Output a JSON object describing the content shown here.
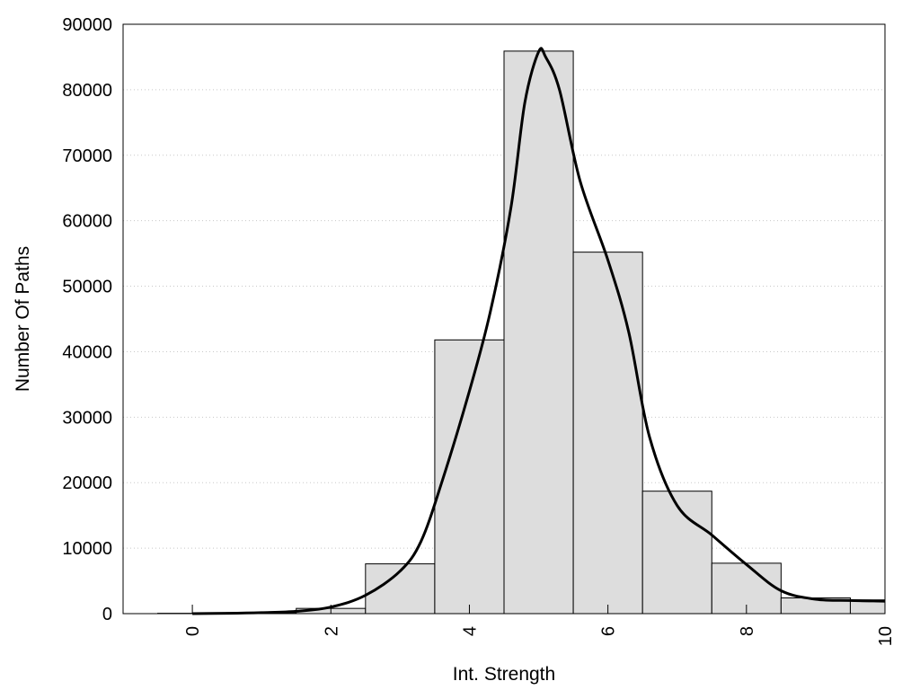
{
  "chart_data": {
    "type": "bar",
    "xlabel": "Int. Strength",
    "ylabel": "Number Of Paths",
    "xlim": [
      -1,
      10
    ],
    "ylim": [
      0,
      90000
    ],
    "x_ticks": [
      0,
      2,
      4,
      6,
      8,
      10
    ],
    "y_ticks": [
      0,
      10000,
      20000,
      30000,
      40000,
      50000,
      60000,
      70000,
      80000,
      90000
    ],
    "grid": "horizontal-dotted",
    "legend": "none",
    "bar_color": "#dddddd",
    "curve_color": "#000000",
    "bins": [
      {
        "x": 0,
        "value": 50
      },
      {
        "x": 1,
        "value": 150
      },
      {
        "x": 2,
        "value": 800
      },
      {
        "x": 3,
        "value": 7600
      },
      {
        "x": 4,
        "value": 41800
      },
      {
        "x": 5,
        "value": 85900
      },
      {
        "x": 6,
        "value": 55200
      },
      {
        "x": 7,
        "value": 18700
      },
      {
        "x": 8,
        "value": 7700
      },
      {
        "x": 9,
        "value": 2400
      },
      {
        "x": 10,
        "value": 2100
      }
    ],
    "curve": [
      [
        0,
        0
      ],
      [
        0.5,
        50
      ],
      [
        1,
        150
      ],
      [
        1.5,
        350
      ],
      [
        2,
        1000
      ],
      [
        2.5,
        2800
      ],
      [
        3,
        6500
      ],
      [
        3.3,
        11000
      ],
      [
        3.6,
        20000
      ],
      [
        4,
        34000
      ],
      [
        4.3,
        46000
      ],
      [
        4.6,
        62000
      ],
      [
        4.8,
        78000
      ],
      [
        5,
        85800
      ],
      [
        5.1,
        85000
      ],
      [
        5.3,
        80000
      ],
      [
        5.6,
        66000
      ],
      [
        6,
        54000
      ],
      [
        6.3,
        43000
      ],
      [
        6.6,
        27000
      ],
      [
        7,
        16500
      ],
      [
        7.5,
        12000
      ],
      [
        8,
        7500
      ],
      [
        8.5,
        3500
      ],
      [
        9,
        2200
      ],
      [
        9.5,
        2000
      ],
      [
        10,
        1900
      ]
    ]
  }
}
